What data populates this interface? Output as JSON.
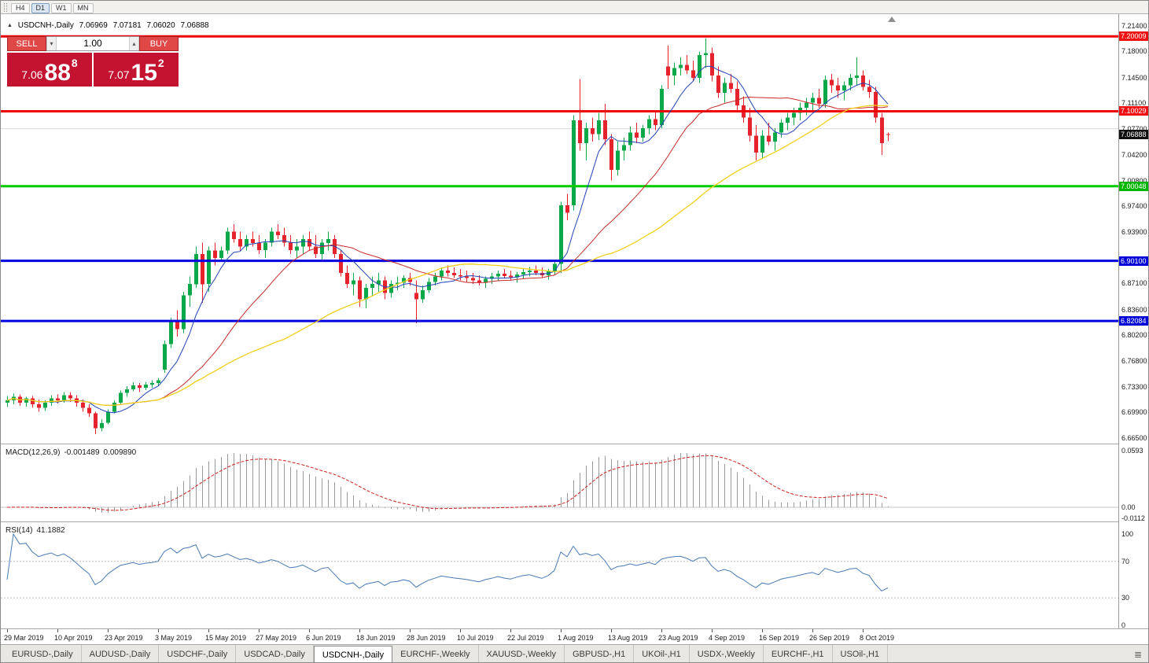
{
  "toolbar": {
    "timeframes": [
      "H4",
      "D1",
      "W1",
      "MN"
    ],
    "active": "D1"
  },
  "info_line": {
    "marker": "▲",
    "symbol": "USDCNH-,Daily",
    "open": "7.06969",
    "high": "7.07181",
    "low": "7.06020",
    "close": "7.06888"
  },
  "trade_panel": {
    "sell_label": "SELL",
    "buy_label": "BUY",
    "volume": "1.00",
    "sell_price": {
      "base": "7.06",
      "pips": "88",
      "pipette": "8"
    },
    "buy_price": {
      "base": "7.07",
      "pips": "15",
      "pipette": "2"
    },
    "button_color": "#e04747",
    "price_box_color": "#c31330"
  },
  "price_axis": {
    "ticks": [
      "7.21400",
      "7.18000",
      "7.14500",
      "7.11100",
      "7.07700",
      "7.04200",
      "7.00800",
      "6.97400",
      "6.93900",
      "6.87100",
      "6.83600",
      "6.80200",
      "6.76800",
      "6.73300",
      "6.69900",
      "6.66500"
    ],
    "tags": [
      {
        "price": 7.20009,
        "label": "7.20009",
        "bg": "#ee1111",
        "interactable": true
      },
      {
        "price": 7.10029,
        "label": "7.10029",
        "bg": "#ee1111",
        "interactable": true
      },
      {
        "price": 7.06888,
        "label": "7.06888",
        "bg": "#111111",
        "interactable": false
      },
      {
        "price": 7.00048,
        "label": "7.00048",
        "bg": "#00b400",
        "interactable": true
      },
      {
        "price": 6.901,
        "label": "6.90100",
        "bg": "#0000d8",
        "interactable": true
      },
      {
        "price": 6.82084,
        "label": "6.82084",
        "bg": "#0000d8",
        "interactable": true
      }
    ]
  },
  "chart_data": {
    "type": "candlestick",
    "symbol": "USDCNH",
    "timeframe": "Daily",
    "axis_range": {
      "top": 7.2297,
      "bottom": 6.6575
    },
    "colors": {
      "up": "#0ba84a",
      "down": "#e5232c"
    },
    "x_labels": [
      {
        "i": 0,
        "label": "29 Mar 2019"
      },
      {
        "i": 8,
        "label": "10 Apr 2019"
      },
      {
        "i": 16,
        "label": "23 Apr 2019"
      },
      {
        "i": 24,
        "label": "3 May 2019"
      },
      {
        "i": 32,
        "label": "15 May 2019"
      },
      {
        "i": 40,
        "label": "27 May 2019"
      },
      {
        "i": 48,
        "label": "6 Jun 2019"
      },
      {
        "i": 56,
        "label": "18 Jun 2019"
      },
      {
        "i": 64,
        "label": "28 Jun 2019"
      },
      {
        "i": 72,
        "label": "10 Jul 2019"
      },
      {
        "i": 80,
        "label": "22 Jul 2019"
      },
      {
        "i": 88,
        "label": "1 Aug 2019"
      },
      {
        "i": 96,
        "label": "13 Aug 2019"
      },
      {
        "i": 104,
        "label": "23 Aug 2019"
      },
      {
        "i": 112,
        "label": "4 Sep 2019"
      },
      {
        "i": 120,
        "label": "16 Sep 2019"
      },
      {
        "i": 128,
        "label": "26 Sep 2019"
      },
      {
        "i": 136,
        "label": "8 Oct 2019"
      }
    ],
    "h_lines": [
      {
        "price": 7.077,
        "color": "#d8d8d8",
        "width": 1
      },
      {
        "price": 7.20009,
        "color": "#f00000",
        "width": 3
      },
      {
        "price": 7.10029,
        "color": "#f00000",
        "width": 3
      },
      {
        "price": 7.00048,
        "color": "#00cc00",
        "width": 3
      },
      {
        "price": 6.901,
        "color": "#0000e0",
        "width": 3
      },
      {
        "price": 6.82084,
        "color": "#0000e0",
        "width": 3
      }
    ],
    "moving_averages": [
      {
        "period": 7,
        "color": "#2243b6",
        "width": 1
      },
      {
        "period": 21,
        "color": "#c82a2a",
        "width": 1
      },
      {
        "period": 45,
        "color": "#f2cf1d",
        "width": 1.3
      }
    ],
    "candles": [
      [
        6.712,
        6.721,
        6.706,
        6.715
      ],
      [
        6.715,
        6.724,
        6.71,
        6.72
      ],
      [
        6.72,
        6.723,
        6.708,
        6.712
      ],
      [
        6.712,
        6.72,
        6.707,
        6.718
      ],
      [
        6.718,
        6.721,
        6.705,
        6.71
      ],
      [
        6.71,
        6.716,
        6.7,
        6.705
      ],
      [
        6.705,
        6.715,
        6.701,
        6.712
      ],
      [
        6.712,
        6.722,
        6.708,
        6.718
      ],
      [
        6.718,
        6.723,
        6.711,
        6.715
      ],
      [
        6.715,
        6.726,
        6.712,
        6.722
      ],
      [
        6.722,
        6.726,
        6.713,
        6.718
      ],
      [
        6.718,
        6.722,
        6.707,
        6.712
      ],
      [
        6.712,
        6.716,
        6.7,
        6.705
      ],
      [
        6.705,
        6.71,
        6.693,
        6.698
      ],
      [
        6.698,
        6.7,
        6.67,
        6.678
      ],
      [
        6.678,
        6.69,
        6.674,
        6.685
      ],
      [
        6.685,
        6.703,
        6.683,
        6.7
      ],
      [
        6.7,
        6.715,
        6.698,
        6.712
      ],
      [
        6.712,
        6.728,
        6.71,
        6.725
      ],
      [
        6.725,
        6.734,
        6.72,
        6.73
      ],
      [
        6.73,
        6.739,
        6.727,
        6.735
      ],
      [
        6.735,
        6.738,
        6.726,
        6.732
      ],
      [
        6.732,
        6.74,
        6.729,
        6.736
      ],
      [
        6.736,
        6.742,
        6.732,
        6.738
      ],
      [
        6.738,
        6.745,
        6.734,
        6.742
      ],
      [
        6.756,
        6.795,
        6.752,
        6.79
      ],
      [
        6.79,
        6.825,
        6.785,
        6.82
      ],
      [
        6.82,
        6.835,
        6.8,
        6.81
      ],
      [
        6.81,
        6.86,
        6.805,
        6.855
      ],
      [
        6.855,
        6.88,
        6.84,
        6.87
      ],
      [
        6.87,
        6.92,
        6.865,
        6.91
      ],
      [
        6.91,
        6.925,
        6.845,
        6.87
      ],
      [
        6.87,
        6.92,
        6.86,
        6.915
      ],
      [
        6.915,
        6.925,
        6.895,
        6.905
      ],
      [
        6.905,
        6.92,
        6.9,
        6.915
      ],
      [
        6.915,
        6.945,
        6.91,
        6.94
      ],
      [
        6.94,
        6.95,
        6.925,
        6.93
      ],
      [
        6.93,
        6.94,
        6.915,
        6.92
      ],
      [
        6.92,
        6.935,
        6.915,
        6.93
      ],
      [
        6.93,
        6.94,
        6.92,
        6.925
      ],
      [
        6.925,
        6.935,
        6.91,
        6.915
      ],
      [
        6.915,
        6.93,
        6.905,
        6.925
      ],
      [
        6.925,
        6.945,
        6.92,
        6.94
      ],
      [
        6.94,
        6.95,
        6.93,
        6.935
      ],
      [
        6.935,
        6.945,
        6.92,
        6.925
      ],
      [
        6.925,
        6.935,
        6.91,
        6.915
      ],
      [
        6.915,
        6.93,
        6.905,
        6.92
      ],
      [
        6.92,
        6.935,
        6.91,
        6.93
      ],
      [
        6.93,
        6.94,
        6.915,
        6.92
      ],
      [
        6.92,
        6.935,
        6.905,
        6.91
      ],
      [
        6.91,
        6.93,
        6.9,
        6.925
      ],
      [
        6.925,
        6.94,
        6.915,
        6.93
      ],
      [
        6.93,
        6.935,
        6.905,
        6.91
      ],
      [
        6.91,
        6.915,
        6.88,
        6.885
      ],
      [
        6.885,
        6.895,
        6.865,
        6.87
      ],
      [
        6.87,
        6.885,
        6.855,
        6.875
      ],
      [
        6.875,
        6.88,
        6.84,
        6.85
      ],
      [
        6.85,
        6.87,
        6.838,
        6.865
      ],
      [
        6.865,
        6.88,
        6.855,
        6.87
      ],
      [
        6.87,
        6.885,
        6.86,
        6.875
      ],
      [
        6.875,
        6.88,
        6.85,
        6.858
      ],
      [
        6.858,
        6.875,
        6.852,
        6.87
      ],
      [
        6.87,
        6.88,
        6.862,
        6.872
      ],
      [
        6.872,
        6.882,
        6.865,
        6.878
      ],
      [
        6.878,
        6.885,
        6.868,
        6.873
      ],
      [
        6.858,
        6.875,
        6.818,
        6.85
      ],
      [
        6.85,
        6.868,
        6.845,
        6.862
      ],
      [
        6.862,
        6.878,
        6.858,
        6.873
      ],
      [
        6.873,
        6.885,
        6.868,
        6.88
      ],
      [
        6.88,
        6.892,
        6.875,
        6.888
      ],
      [
        6.888,
        6.895,
        6.88,
        6.885
      ],
      [
        6.885,
        6.892,
        6.878,
        6.882
      ],
      [
        6.882,
        6.89,
        6.875,
        6.88
      ],
      [
        6.88,
        6.888,
        6.872,
        6.878
      ],
      [
        6.878,
        6.885,
        6.87,
        6.875
      ],
      [
        6.875,
        6.882,
        6.868,
        6.872
      ],
      [
        6.872,
        6.88,
        6.865,
        6.877
      ],
      [
        6.877,
        6.885,
        6.87,
        6.88
      ],
      [
        6.88,
        6.888,
        6.874,
        6.884
      ],
      [
        6.884,
        6.89,
        6.878,
        6.881
      ],
      [
        6.881,
        6.888,
        6.875,
        6.879
      ],
      [
        6.879,
        6.886,
        6.872,
        6.883
      ],
      [
        6.883,
        6.89,
        6.877,
        6.886
      ],
      [
        6.886,
        6.893,
        6.88,
        6.888
      ],
      [
        6.888,
        6.895,
        6.882,
        6.885
      ],
      [
        6.885,
        6.892,
        6.878,
        6.882
      ],
      [
        6.882,
        6.89,
        6.876,
        6.887
      ],
      [
        6.887,
        6.9,
        6.882,
        6.897
      ],
      [
        6.897,
        6.98,
        6.885,
        6.975
      ],
      [
        6.975,
        6.99,
        6.955,
        6.965
      ],
      [
        6.975,
        7.095,
        6.968,
        7.088
      ],
      [
        7.088,
        7.143,
        7.048,
        7.058
      ],
      [
        7.058,
        7.085,
        7.035,
        7.078
      ],
      [
        7.078,
        7.092,
        7.06,
        7.07
      ],
      [
        7.07,
        7.098,
        7.062,
        7.088
      ],
      [
        7.088,
        7.11,
        7.055,
        7.063
      ],
      [
        7.063,
        7.07,
        7.008,
        7.022
      ],
      [
        7.022,
        7.06,
        7.015,
        7.048
      ],
      [
        7.048,
        7.065,
        7.035,
        7.055
      ],
      [
        7.055,
        7.08,
        7.048,
        7.072
      ],
      [
        7.072,
        7.085,
        7.058,
        7.065
      ],
      [
        7.065,
        7.082,
        7.06,
        7.078
      ],
      [
        7.078,
        7.095,
        7.07,
        7.09
      ],
      [
        7.09,
        7.1,
        7.075,
        7.082
      ],
      [
        7.082,
        7.135,
        7.078,
        7.13
      ],
      [
        7.16,
        7.188,
        7.13,
        7.148
      ],
      [
        7.148,
        7.165,
        7.135,
        7.158
      ],
      [
        7.158,
        7.172,
        7.148,
        7.162
      ],
      [
        7.162,
        7.175,
        7.15,
        7.155
      ],
      [
        7.155,
        7.168,
        7.14,
        7.145
      ],
      [
        7.145,
        7.18,
        7.138,
        7.175
      ],
      [
        7.175,
        7.197,
        7.158,
        7.178
      ],
      [
        7.178,
        7.185,
        7.14,
        7.148
      ],
      [
        7.148,
        7.16,
        7.118,
        7.125
      ],
      [
        7.125,
        7.145,
        7.112,
        7.138
      ],
      [
        7.138,
        7.15,
        7.125,
        7.13
      ],
      [
        7.13,
        7.14,
        7.1,
        7.108
      ],
      [
        7.108,
        7.12,
        7.085,
        7.092
      ],
      [
        7.092,
        7.105,
        7.06,
        7.068
      ],
      [
        7.068,
        7.082,
        7.035,
        7.045
      ],
      [
        7.045,
        7.075,
        7.038,
        7.068
      ],
      [
        7.068,
        7.085,
        7.055,
        7.06
      ],
      [
        7.06,
        7.078,
        7.048,
        7.072
      ],
      [
        7.072,
        7.09,
        7.065,
        7.085
      ],
      [
        7.085,
        7.098,
        7.075,
        7.092
      ],
      [
        7.092,
        7.105,
        7.082,
        7.098
      ],
      [
        7.098,
        7.112,
        7.088,
        7.105
      ],
      [
        7.105,
        7.118,
        7.095,
        7.112
      ],
      [
        7.112,
        7.125,
        7.1,
        7.118
      ],
      [
        7.118,
        7.13,
        7.105,
        7.11
      ],
      [
        7.11,
        7.148,
        7.105,
        7.142
      ],
      [
        7.142,
        7.15,
        7.125,
        7.135
      ],
      [
        7.135,
        7.145,
        7.118,
        7.128
      ],
      [
        7.128,
        7.14,
        7.115,
        7.135
      ],
      [
        7.135,
        7.15,
        7.128,
        7.145
      ],
      [
        7.145,
        7.172,
        7.135,
        7.148
      ],
      [
        7.148,
        7.155,
        7.128,
        7.133
      ],
      [
        7.133,
        7.142,
        7.118,
        7.126
      ],
      [
        7.126,
        7.133,
        7.085,
        7.092
      ],
      [
        7.092,
        7.098,
        7.042,
        7.058
      ],
      [
        7.0697,
        7.0718,
        7.0602,
        7.0689
      ]
    ],
    "macd": {
      "label": "MACD(12,26,9)",
      "value_main": "-0.001489",
      "value_signal": "0.009890",
      "fast": 12,
      "slow": 26,
      "signal": 9,
      "axis": {
        "max": 0.0593,
        "max_label": "0.0593",
        "zero_label": "0.00",
        "min": -0.0112,
        "min_label": "-0.0112"
      }
    },
    "rsi": {
      "label": "RSI(14)",
      "value": "41.1882",
      "period": 14,
      "levels": [
        70,
        30
      ],
      "axis_labels": [
        {
          "v": 100,
          "label": "100"
        },
        {
          "v": 70,
          "label": "70"
        },
        {
          "v": 30,
          "label": "30"
        },
        {
          "v": 0,
          "label": "0"
        }
      ]
    }
  },
  "tabs": {
    "items": [
      "EURUSD-,Daily",
      "AUDUSD-,Daily",
      "USDCHF-,Daily",
      "USDCAD-,Daily",
      "USDCNH-,Daily",
      "EURCHF-,Weekly",
      "XAUUSD-,Weekly",
      "GBPUSD-,H1",
      "UKOil-,H1",
      "USDX-,Weekly",
      "EURCHF-,H1",
      "USOil-,H1"
    ],
    "active_index": 4,
    "menu_icon": "≣"
  }
}
